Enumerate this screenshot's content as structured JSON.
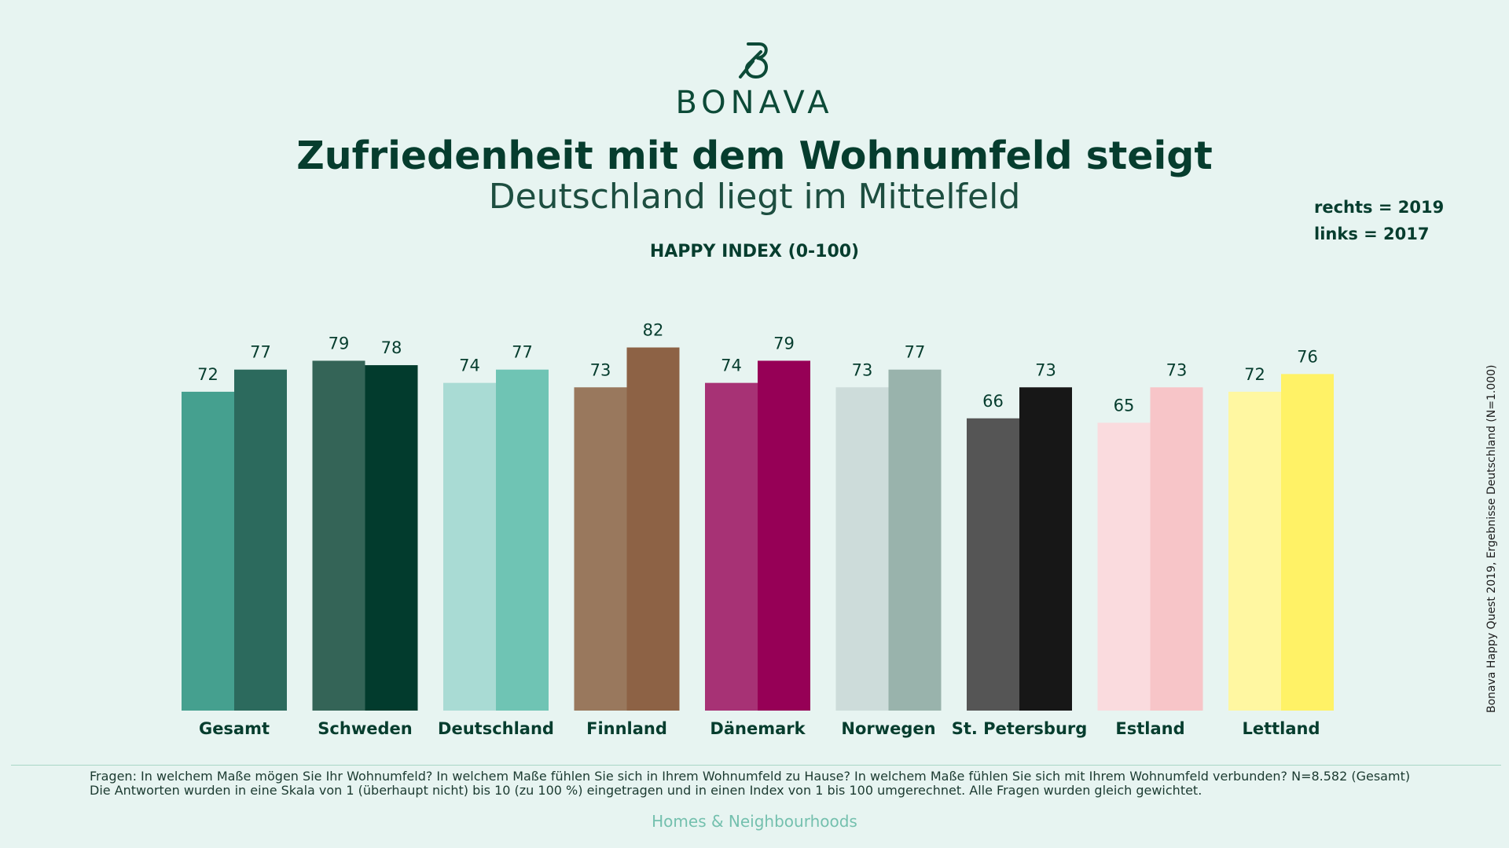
{
  "brand": {
    "name": "BONAVA",
    "color": "#0c4a37",
    "footer_tagline": "Homes & Neighbourhoods"
  },
  "title": "Zufriedenheit mit dem Wohnumfeld steigt",
  "subtitle": "Deutschland liegt im Mittelfeld",
  "legend": {
    "right": "rechts = 2019",
    "left": "links = 2017"
  },
  "source_note": "Bonava Happy Quest 2019, Ergebnisse Deutschland (N=1.000)",
  "notes": [
    "Fragen: In welchem Maße mögen Sie Ihr Wohnumfeld? In welchem Maße fühlen Sie sich in Ihrem Wohnumfeld zu Hause? In welchem Maße fühlen Sie sich mit Ihrem Wohnumfeld verbunden? N=8.582 (Gesamt)",
    "Die Antworten wurden in eine Skala von 1 (überhaupt nicht) bis 10 (zu 100 %) eingetragen und in einen Index von 1 bis 100 umgerechnet. Alle Fragen wurden gleich gewichtet."
  ],
  "chart_data": {
    "type": "bar",
    "title": "HAPPY INDEX (0-100)",
    "categories": [
      "Gesamt",
      "Schweden",
      "Deutschland",
      "Finnland",
      "Dänemark",
      "Norwegen",
      "St. Petersburg",
      "Estland",
      "Lettland"
    ],
    "series": [
      {
        "values": [
          72,
          79,
          74,
          73,
          74,
          73,
          66,
          65,
          72
        ],
        "colors": [
          "#45a08f",
          "#346457",
          "#a9dbd4",
          "#99785d",
          "#a73275",
          "#cddcda",
          "#555555",
          "#fadbde",
          "#fff7a1"
        ]
      },
      {
        "values": [
          77,
          78,
          77,
          82,
          79,
          77,
          73,
          73,
          76
        ],
        "colors": [
          "#2c6a5d",
          "#023b2d",
          "#6fc4b4",
          "#8d6245",
          "#960056",
          "#99b3ac",
          "#171717",
          "#f7c5c8",
          "#fff266"
        ]
      }
    ],
    "ylim": [
      0,
      100
    ],
    "grid": false,
    "legend_position": "top-right"
  }
}
